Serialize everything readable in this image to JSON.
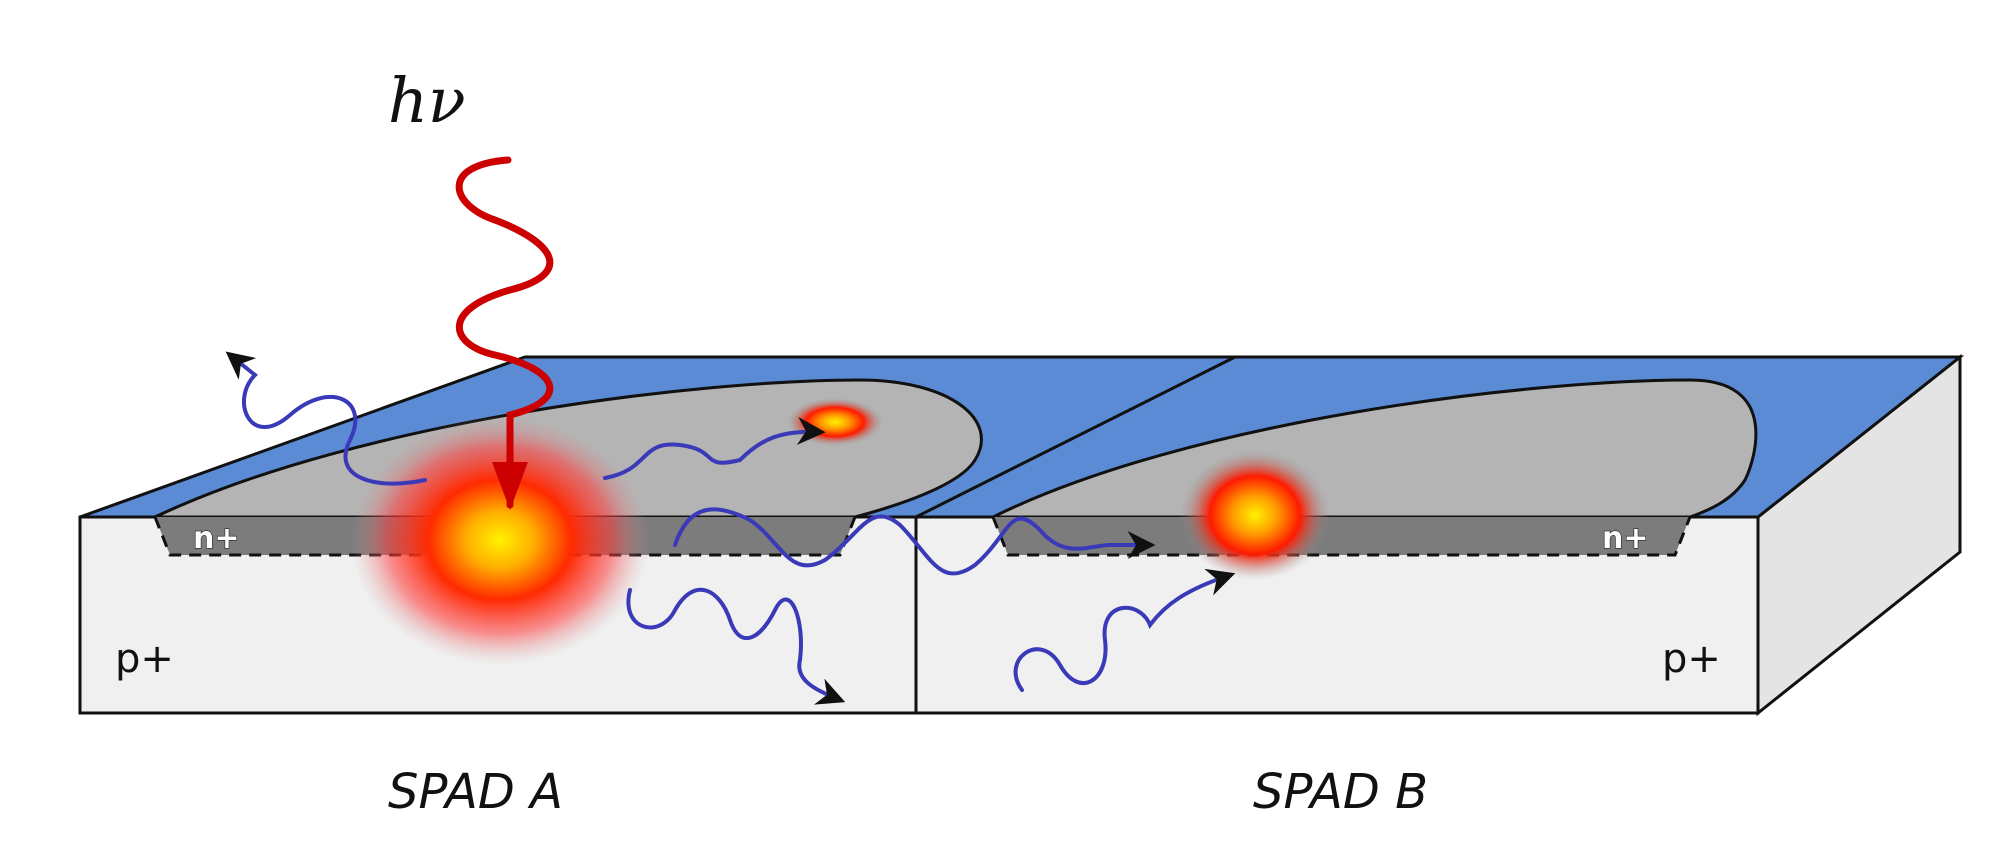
{
  "photon_label": "hν",
  "doping": {
    "n_plus_a": "n+",
    "n_plus_b": "n+",
    "p_plus_a": "p+",
    "p_plus_b": "p+"
  },
  "devices": {
    "spad_a": "SPAD A",
    "spad_b": "SPAD B"
  },
  "colors": {
    "oxide_top": "#5b8bd4",
    "junction_surface": "#b4b4b4",
    "n_plus_region": "#7c7c7c",
    "substrate_front": "#f0f0f0",
    "substrate_side": "#e4e4e4",
    "incident_photon": "#cc0000",
    "emitted_photons": "#3a3ab8",
    "arrow_heads": "#111111"
  }
}
